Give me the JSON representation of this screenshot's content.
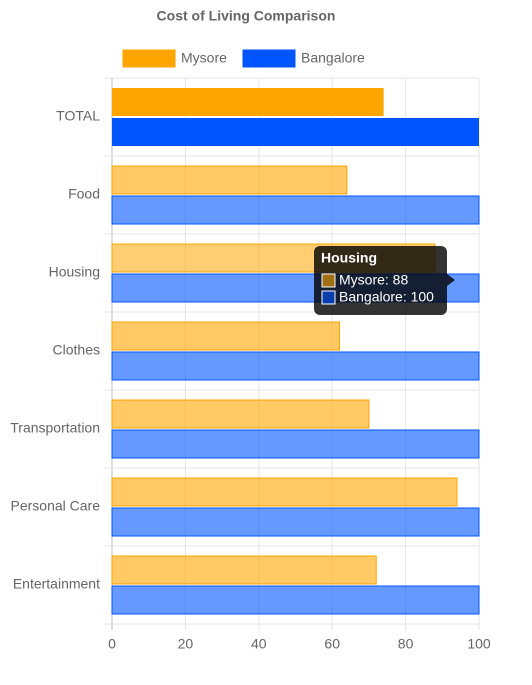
{
  "chart_data": {
    "type": "hbar",
    "title": "Cost of Living Comparison",
    "categories": [
      "TOTAL",
      "Food",
      "Housing",
      "Clothes",
      "Transportation",
      "Personal Care",
      "Entertainment"
    ],
    "series": [
      {
        "name": "Mysore",
        "color": "#ffa500",
        "values": [
          74,
          64,
          88,
          62,
          70,
          94,
          72
        ]
      },
      {
        "name": "Bangalore",
        "color": "#0055ff",
        "values": [
          100,
          100,
          100,
          100,
          100,
          100,
          100
        ]
      }
    ],
    "xlim": [
      0,
      100
    ],
    "xticks": [
      0,
      20,
      40,
      60,
      80,
      100
    ],
    "grid": true,
    "legend": "top",
    "tooltip": {
      "title": "Housing",
      "lines": [
        "Mysore: 88",
        "Bangalore: 100"
      ]
    }
  }
}
